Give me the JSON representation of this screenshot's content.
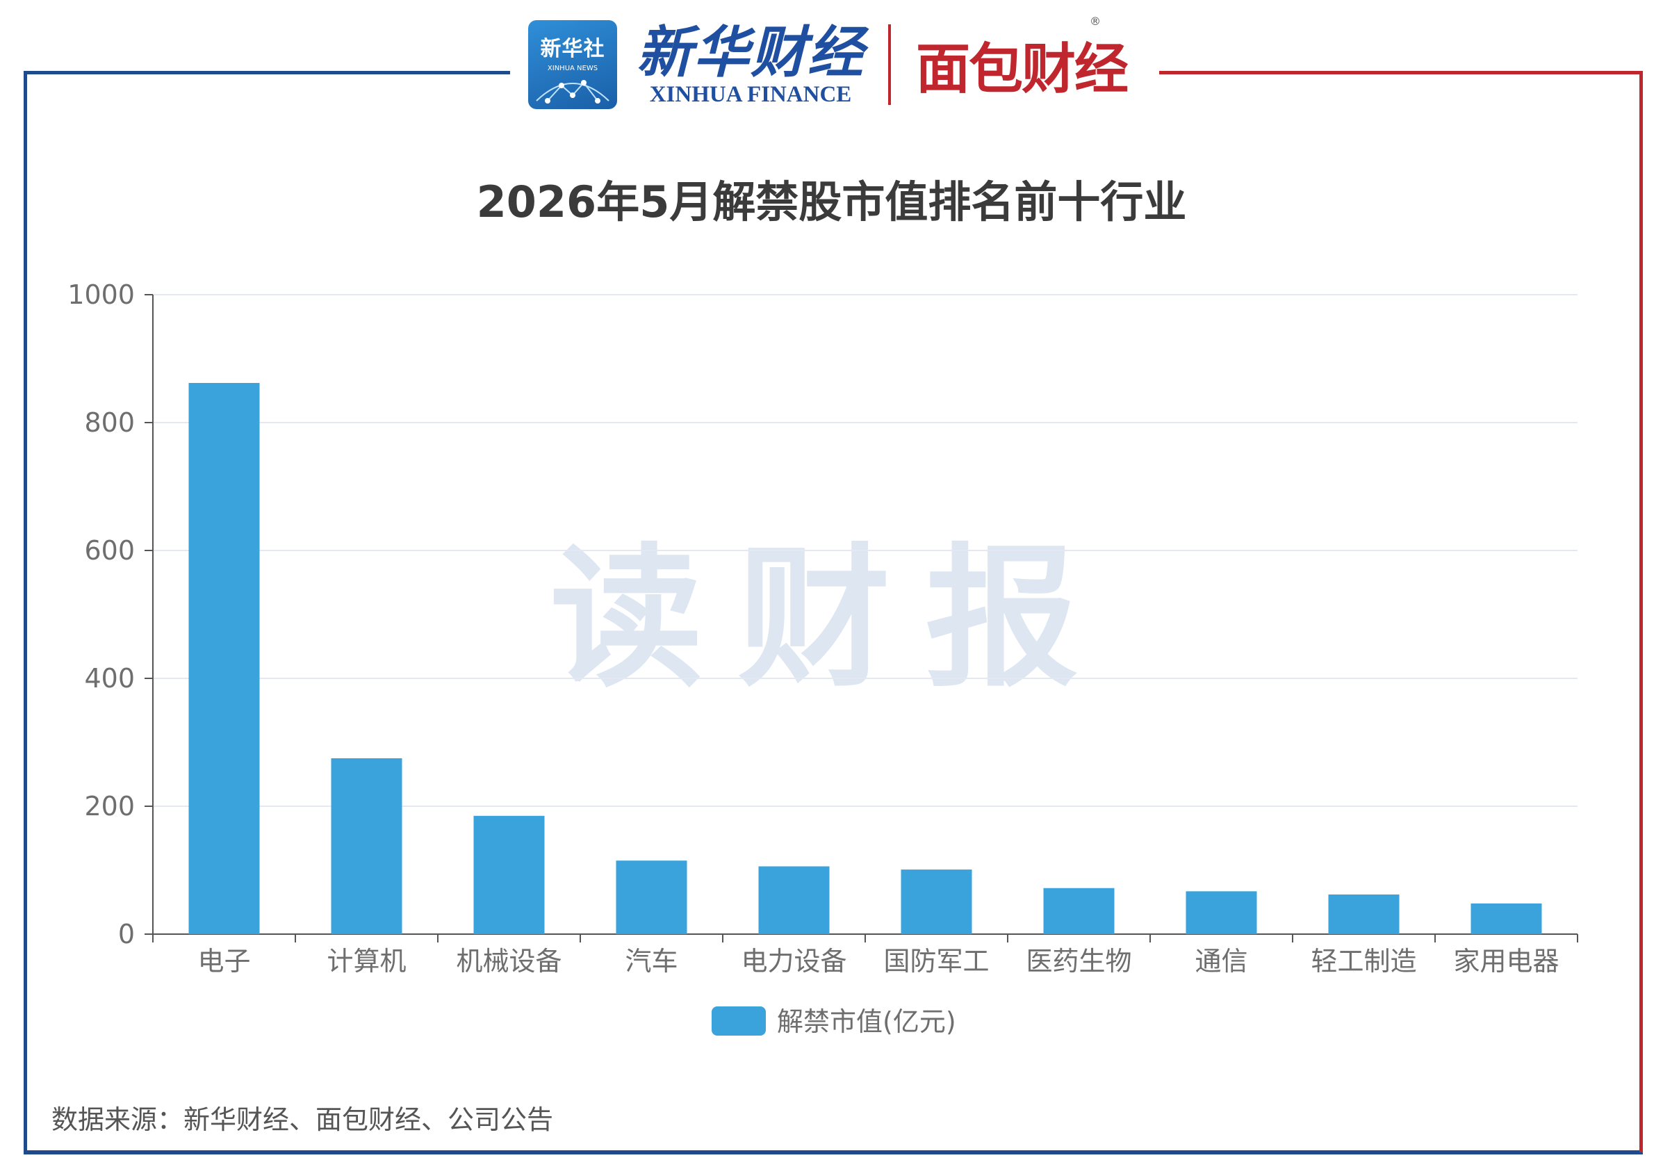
{
  "branding": {
    "xinhua_badge_cn": "新华社",
    "xinhua_badge_en": "XINHUA NEWS",
    "xinhua_finance_cn": "新华财经",
    "xinhua_finance_en": "XINHUA FINANCE",
    "mianbao_cn": "面包财经",
    "reg_mark": "®",
    "watermark": "读财报"
  },
  "colors": {
    "bar": "#3aa3dc",
    "frame_left": "#1f4a8c",
    "frame_right": "#c0262d",
    "grid": "#e3e8f3",
    "axis": "#555555",
    "tick_text": "#6e6e6e"
  },
  "chart_data": {
    "type": "bar",
    "title": "2026年5月解禁股市值排名前十行业",
    "categories": [
      "电子",
      "计算机",
      "机械设备",
      "汽车",
      "电力设备",
      "国防军工",
      "医药生物",
      "通信",
      "轻工制造",
      "家用电器"
    ],
    "series": [
      {
        "name": "解禁市值(亿元)",
        "values": [
          862,
          275,
          185,
          115,
          106,
          101,
          72,
          67,
          62,
          48
        ]
      }
    ],
    "y_ticks": [
      0,
      200,
      400,
      600,
      800,
      1000
    ],
    "ylim": [
      0,
      1000
    ],
    "grid": true,
    "legend_position": "bottom-center"
  },
  "source_note": "数据来源：新华财经、面包财经、公司公告"
}
